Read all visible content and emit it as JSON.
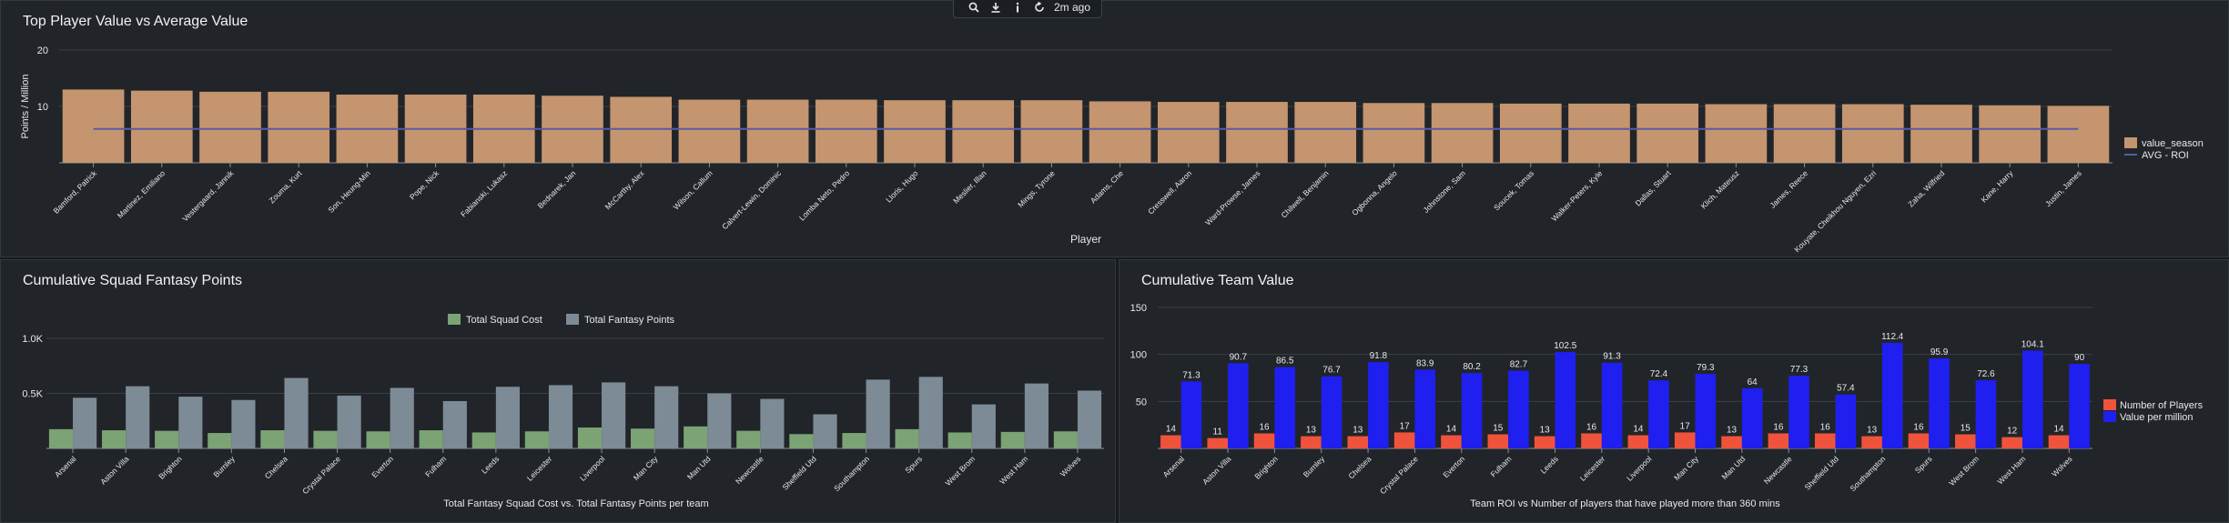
{
  "toolbar": {
    "icons": [
      "search-icon",
      "download-icon",
      "info-icon",
      "refresh-icon"
    ],
    "time_label": "2m ago"
  },
  "panels": [
    {
      "title": "Top Player Value vs Average Value"
    },
    {
      "title": "Cumulative Squad Fantasy Points"
    },
    {
      "title": "Cumulative Team Value"
    }
  ],
  "chart_data": [
    {
      "type": "bar",
      "title": "Top Player Value vs Average Value",
      "xlabel": "Player",
      "ylabel": "Points / Million",
      "ylim": [
        0,
        20
      ],
      "yticks": [
        10,
        20
      ],
      "grid": true,
      "legend_position": "right",
      "categories": [
        "Bamford, Patrick",
        "Martinez, Emiliano",
        "Vestergaard, Jannik",
        "Zouma, Kurt",
        "Son, Heung-Min",
        "Pope, Nick",
        "Fabianski, Lukasz",
        "Bednarek, Jan",
        "McCarthy, Alex",
        "Wilson, Callum",
        "Calvert-Lewin, Dominic",
        "Lomba Neto, Pedro",
        "Lloris, Hugo",
        "Meslier, Illan",
        "Mings, Tyrone",
        "Adams, Che",
        "Cresswell, Aaron",
        "Ward-Prowse, James",
        "Chilwell, Benjamin",
        "Ogbonna, Angelo",
        "Johnstone, Sam",
        "Soucek, Tomas",
        "Walker-Peters, Kyle",
        "Dallas, Stuart",
        "Klich, Mateusz",
        "James, Reece",
        "Kouyate, Cheikhou Nguyen, Ezri",
        "Zaha, Wilfried",
        "Kane, Harry",
        "Justin, James"
      ],
      "series": [
        {
          "name": "value_season",
          "type": "bar",
          "color": "#c4956f",
          "values": [
            13.0,
            12.8,
            12.6,
            12.6,
            12.1,
            12.1,
            12.1,
            11.9,
            11.7,
            11.2,
            11.2,
            11.2,
            11.1,
            11.1,
            11.1,
            10.9,
            10.8,
            10.8,
            10.8,
            10.6,
            10.6,
            10.5,
            10.5,
            10.5,
            10.4,
            10.4,
            10.4,
            10.3,
            10.2,
            10.1
          ]
        },
        {
          "name": "AVG - ROI",
          "type": "line",
          "color": "#5b5aa6",
          "value": 6.0
        }
      ]
    },
    {
      "type": "bar",
      "title": "Cumulative Squad Fantasy Points",
      "xlabel": "Total Fantasy Squad Cost vs. Total Fantasy Points per team",
      "ylabel": "",
      "ylim": [
        0,
        1000
      ],
      "ytick_labels": [
        "0.5K",
        "1.0K"
      ],
      "ytick_values": [
        500,
        1000
      ],
      "grid": true,
      "legend_position": "top",
      "categories": [
        "Arsenal",
        "Aston Villa",
        "Brighton",
        "Burnley",
        "Chelsea",
        "Crystal Palace",
        "Everton",
        "Fulham",
        "Leeds",
        "Leicester",
        "Liverpool",
        "Man City",
        "Man Utd",
        "Newcastle",
        "Sheffield Utd",
        "Southampton",
        "Spurs",
        "West Brom",
        "West Ham",
        "Wolves"
      ],
      "series": [
        {
          "name": "Total Squad Cost",
          "color": "#7ba374",
          "values": [
            175,
            165,
            160,
            140,
            165,
            160,
            155,
            165,
            145,
            155,
            190,
            180,
            200,
            160,
            130,
            140,
            175,
            145,
            150,
            155
          ]
        },
        {
          "name": "Total Fantasy Points",
          "color": "#7d8b96",
          "values": [
            460,
            565,
            470,
            440,
            640,
            480,
            550,
            430,
            560,
            575,
            600,
            565,
            500,
            450,
            310,
            625,
            650,
            400,
            590,
            525
          ]
        }
      ]
    },
    {
      "type": "bar",
      "title": "Cumulative Team Value",
      "xlabel": "Team ROI vs Number of players that have played more than 360 mins",
      "ylabel": "",
      "ylim": [
        0,
        150
      ],
      "yticks": [
        50,
        100,
        150
      ],
      "grid": true,
      "legend_position": "right",
      "categories": [
        "Arsenal",
        "Aston Villa",
        "Brighton",
        "Burnley",
        "Chelsea",
        "Crystal Palace",
        "Everton",
        "Fulham",
        "Leeds",
        "Leicester",
        "Liverpool",
        "Man City",
        "Man Utd",
        "Newcastle",
        "Sheffield Utd",
        "Southampton",
        "Spurs",
        "West Brom",
        "West Ham",
        "Wolves"
      ],
      "series": [
        {
          "name": "Number of Players",
          "color": "#f0533b",
          "values": [
            14,
            11,
            16,
            13,
            13,
            17,
            14,
            15,
            13,
            16,
            14,
            17,
            13,
            16,
            16,
            13,
            16,
            15,
            12,
            14
          ]
        },
        {
          "name": "Value per million",
          "color": "#1f1ff0",
          "values": [
            71.3,
            90.7,
            86.5,
            76.7,
            91.8,
            83.9,
            80.2,
            82.7,
            102.5,
            91.3,
            72.4,
            79.3,
            64,
            77.3,
            57.4,
            112.4,
            95.9,
            72.6,
            104.1,
            90
          ]
        }
      ]
    }
  ]
}
